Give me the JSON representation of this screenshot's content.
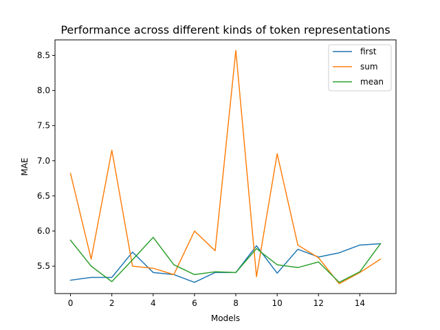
{
  "chart_data": {
    "type": "line",
    "title": "Performance across different kinds of token representations",
    "xlabel": "Models",
    "ylabel": "MAE",
    "xlim": [
      -0.75,
      15.75
    ],
    "ylim": [
      5.11,
      8.72
    ],
    "xticks": [
      0,
      2,
      4,
      6,
      8,
      10,
      12,
      14
    ],
    "yticks": [
      5.5,
      6.0,
      6.5,
      7.0,
      7.5,
      8.0,
      8.5
    ],
    "ytick_labels": [
      "5.5",
      "6.0",
      "6.5",
      "7.0",
      "7.5",
      "8.0",
      "8.5"
    ],
    "grid": false,
    "legend_position": "top-right",
    "x": [
      0,
      1,
      2,
      3,
      4,
      5,
      6,
      7,
      8,
      9,
      10,
      11,
      12,
      13,
      14,
      15
    ],
    "series": [
      {
        "name": "first",
        "color": "#1f77b4",
        "values": [
          5.3,
          5.34,
          5.34,
          5.7,
          5.41,
          5.38,
          5.27,
          5.41,
          5.41,
          5.79,
          5.4,
          5.74,
          5.63,
          5.69,
          5.8,
          5.82
        ]
      },
      {
        "name": "sum",
        "color": "#ff7f0e",
        "values": [
          6.82,
          5.6,
          7.15,
          5.5,
          5.47,
          5.38,
          6.0,
          5.72,
          8.57,
          5.35,
          7.1,
          5.8,
          5.62,
          5.25,
          5.41,
          5.6
        ]
      },
      {
        "name": "mean",
        "color": "#2ca02c",
        "values": [
          5.87,
          5.5,
          5.28,
          5.59,
          5.91,
          5.52,
          5.38,
          5.42,
          5.41,
          5.75,
          5.52,
          5.48,
          5.56,
          5.27,
          5.42,
          5.82
        ]
      }
    ]
  }
}
